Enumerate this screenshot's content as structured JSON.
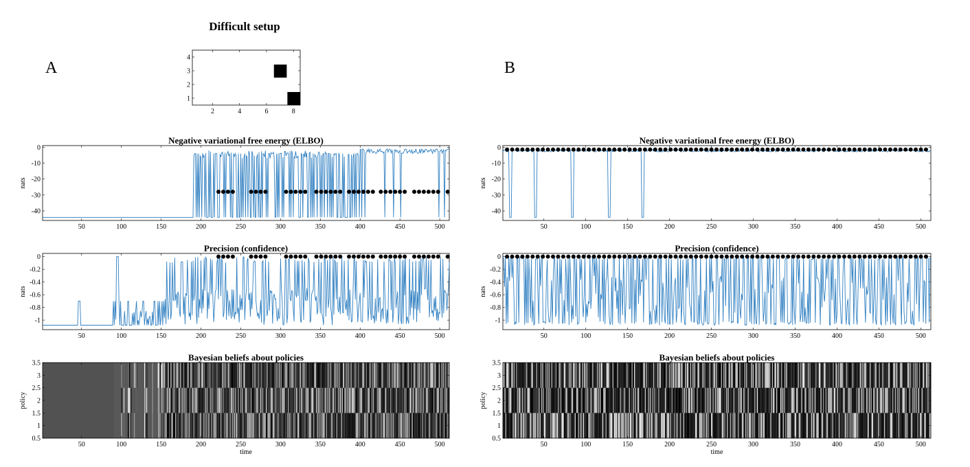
{
  "figure": {
    "main_title": "Difficult setup",
    "panel_labels": [
      "A",
      "B"
    ],
    "colors": {
      "line": "#2f7fc1",
      "dot": "#000000",
      "axis": "#000000"
    }
  },
  "chart_data": [
    {
      "id": "grid",
      "type": "scatter",
      "title": "",
      "xlabel": "",
      "ylabel": "",
      "xlim": [
        0.5,
        8.5
      ],
      "ylim": [
        0.5,
        4.5
      ],
      "xticks": [
        2,
        4,
        6,
        8
      ],
      "yticks": [
        1,
        2,
        3,
        4
      ],
      "cells": [
        {
          "x": 7,
          "y": 3
        },
        {
          "x": 8,
          "y": 1
        }
      ]
    },
    {
      "id": "A-elbo",
      "type": "line",
      "title": "Negative variational free energy (ELBO)",
      "xlabel": "",
      "ylabel": "nats",
      "xlim": [
        1,
        512
      ],
      "ylim": [
        -46,
        1
      ],
      "xticks": [
        50,
        100,
        150,
        200,
        250,
        300,
        350,
        400,
        450,
        500
      ],
      "yticks": [
        0,
        -10,
        -20,
        -30,
        -40
      ],
      "seed": 11,
      "regime": "difficult-elbo",
      "dots_y": -28,
      "dots_x": [
        222,
        228,
        234,
        240,
        263,
        269,
        275,
        281,
        307,
        313,
        319,
        325,
        331,
        345,
        351,
        357,
        363,
        369,
        375,
        386,
        392,
        398,
        404,
        410,
        416,
        426,
        432,
        438,
        444,
        450,
        456,
        468,
        474,
        480,
        486,
        492,
        498,
        510
      ]
    },
    {
      "id": "A-prec",
      "type": "line",
      "title": "Precision (confidence)",
      "xlabel": "",
      "ylabel": "nats",
      "xlim": [
        1,
        512
      ],
      "ylim": [
        -1.15,
        0.05
      ],
      "xticks": [
        50,
        100,
        150,
        200,
        250,
        300,
        350,
        400,
        450,
        500
      ],
      "yticks": [
        0,
        -0.2,
        -0.4,
        -0.6,
        -0.8,
        -1
      ],
      "seed": 23,
      "regime": "difficult-prec",
      "dots_y": 0,
      "dots_x": [
        222,
        228,
        234,
        240,
        263,
        269,
        275,
        281,
        307,
        313,
        319,
        325,
        331,
        345,
        351,
        357,
        363,
        369,
        375,
        386,
        392,
        398,
        404,
        410,
        416,
        426,
        432,
        438,
        444,
        450,
        456,
        468,
        474,
        480,
        486,
        492,
        498,
        510
      ]
    },
    {
      "id": "A-beliefs",
      "type": "heatmap",
      "title": "Bayesian beliefs about policies",
      "xlabel": "time",
      "ylabel": "policy",
      "xlim": [
        1,
        512
      ],
      "ylim": [
        0.5,
        3.5
      ],
      "xticks": [
        50,
        100,
        150,
        200,
        250,
        300,
        350,
        400,
        450,
        500
      ],
      "yticks": [
        0.5,
        1,
        1.5,
        2,
        2.5,
        3,
        3.5
      ],
      "seed": 37,
      "regime": "difficult"
    },
    {
      "id": "B-elbo",
      "type": "line",
      "title": "Negative variational free energy (ELBO)",
      "xlabel": "",
      "ylabel": "nats",
      "xlim": [
        1,
        512
      ],
      "ylim": [
        -46,
        1
      ],
      "xticks": [
        50,
        100,
        150,
        200,
        250,
        300,
        350,
        400,
        450,
        500
      ],
      "yticks": [
        0,
        -10,
        -20,
        -30,
        -40
      ],
      "seed": 41,
      "regime": "easy-elbo",
      "dots_y": -1.5,
      "dots_step": 6.1,
      "dots_start": 6
    },
    {
      "id": "B-prec",
      "type": "line",
      "title": "Precision (confidence)",
      "xlabel": "",
      "ylabel": "nats",
      "xlim": [
        1,
        512
      ],
      "ylim": [
        -1.15,
        0.05
      ],
      "xticks": [
        50,
        100,
        150,
        200,
        250,
        300,
        350,
        400,
        450,
        500
      ],
      "yticks": [
        0,
        -0.2,
        -0.4,
        -0.6,
        -0.8,
        -1
      ],
      "seed": 53,
      "regime": "easy-prec",
      "dots_y": 0,
      "dots_step": 6.1,
      "dots_start": 6
    },
    {
      "id": "B-beliefs",
      "type": "heatmap",
      "title": "Bayesian beliefs about policies",
      "xlabel": "time",
      "ylabel": "policy",
      "xlim": [
        1,
        512
      ],
      "ylim": [
        0.5,
        3.5
      ],
      "xticks": [
        50,
        100,
        150,
        200,
        250,
        300,
        350,
        400,
        450,
        500
      ],
      "yticks": [
        0.5,
        1,
        1.5,
        2,
        2.5,
        3,
        3.5
      ],
      "seed": 67,
      "regime": "easy"
    }
  ]
}
